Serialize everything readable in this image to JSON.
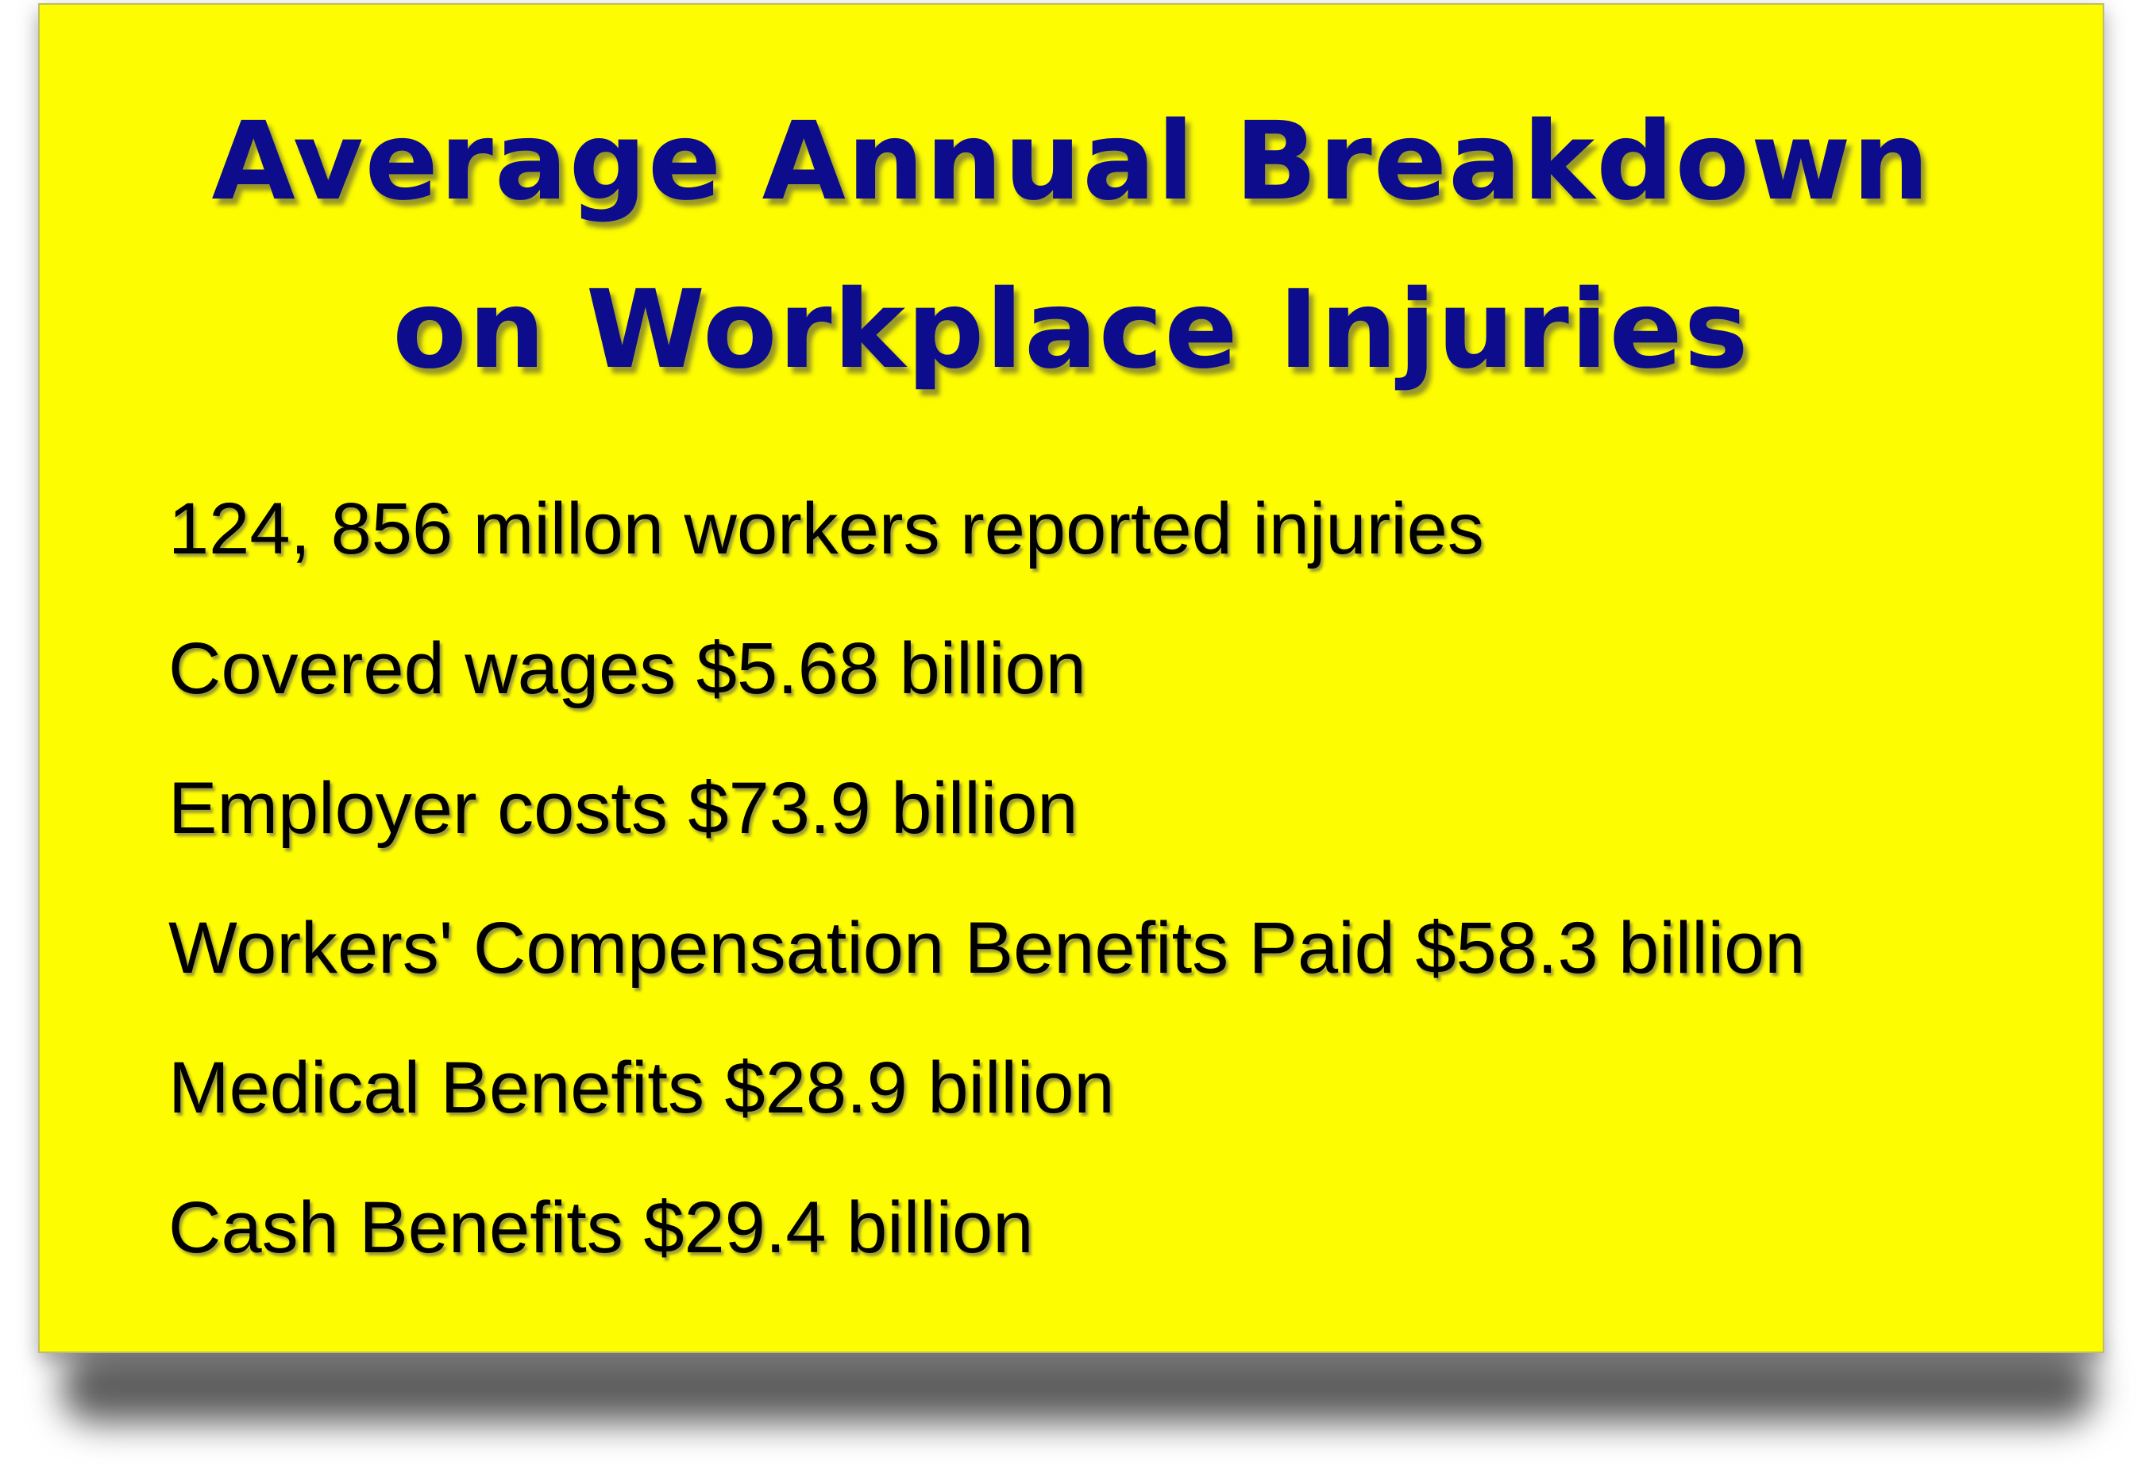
{
  "card": {
    "background_color": "#fdfc00",
    "title_color": "#0c0c8c",
    "text_color": "#000000",
    "title_lines": [
      "Average Annual Breakdown",
      "on Workplace Injuries"
    ],
    "facts": [
      "124, 856 millon workers reported injuries",
      "Covered wages $5.68 billion",
      "Employer costs $73.9 billion",
      "Workers' Compensation Benefits Paid $58.3 billion",
      "Medical Benefits $28.9 billion",
      "Cash Benefits $29.4 billion"
    ]
  }
}
